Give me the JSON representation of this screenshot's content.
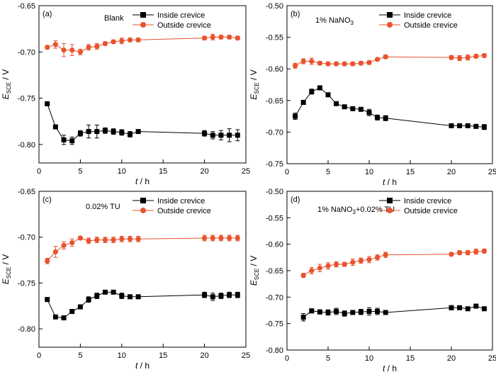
{
  "colors": {
    "inside": "#000000",
    "outside": "#e8532e",
    "axis": "#000000"
  },
  "chart_data": [
    {
      "type": "line",
      "panel_label": "(a)",
      "annotation": "Blank",
      "xlabel_italic": "t",
      "xlabel_unit": " / h",
      "ylabel_main": "E",
      "ylabel_sub": "SCE",
      "ylabel_unit": " / V",
      "xlim": [
        0,
        25
      ],
      "ylim": [
        -0.82,
        -0.65
      ],
      "xticks": [
        0,
        5,
        10,
        15,
        20,
        25
      ],
      "yticks": [
        -0.65,
        -0.7,
        -0.75,
        -0.8
      ],
      "ytick_labels": [
        "-0.65",
        "-0.70",
        "-0.75",
        "-0.80"
      ],
      "legend": {
        "placement": "top-right"
      },
      "series": [
        {
          "name": "Inside crevice",
          "marker": "square",
          "x": [
            1,
            2,
            3,
            4,
            5,
            6,
            7,
            8,
            9,
            10,
            11,
            12,
            20,
            21,
            22,
            23,
            24
          ],
          "y": [
            -0.756,
            -0.781,
            -0.795,
            -0.796,
            -0.788,
            -0.786,
            -0.786,
            -0.785,
            -0.786,
            -0.787,
            -0.789,
            -0.786,
            -0.788,
            -0.79,
            -0.79,
            -0.79,
            -0.79
          ],
          "err": [
            0,
            0,
            0.005,
            0.004,
            0.003,
            0.007,
            0.007,
            0.003,
            0.003,
            0.003,
            0.003,
            0.001,
            0.003,
            0.004,
            0.005,
            0.007,
            0.006
          ]
        },
        {
          "name": "Outside crevice",
          "marker": "circle",
          "x": [
            1,
            2,
            3,
            4,
            5,
            6,
            7,
            8,
            9,
            10,
            11,
            12,
            20,
            21,
            22,
            23,
            24
          ],
          "y": [
            -0.695,
            -0.692,
            -0.698,
            -0.698,
            -0.7,
            -0.695,
            -0.694,
            -0.691,
            -0.689,
            -0.688,
            -0.687,
            -0.687,
            -0.685,
            -0.684,
            -0.684,
            -0.684,
            -0.685
          ],
          "err": [
            0.002,
            0.004,
            0.007,
            0.006,
            0.003,
            0.003,
            0.003,
            0.002,
            0.002,
            0.003,
            0.002,
            0.002,
            0.002,
            0.003,
            0.002,
            0.002,
            0.002
          ]
        }
      ]
    },
    {
      "type": "line",
      "panel_label": "(b)",
      "annotation": "1% NaNO",
      "annotation_sub": "3",
      "xlabel_italic": "t",
      "xlabel_unit": " / h",
      "ylabel_main": "E",
      "ylabel_sub": "SCE",
      "ylabel_unit": " / V",
      "xlim": [
        0,
        25
      ],
      "ylim": [
        -0.75,
        -0.5
      ],
      "xticks": [
        0,
        5,
        10,
        15,
        20,
        25
      ],
      "yticks": [
        -0.5,
        -0.55,
        -0.6,
        -0.65,
        -0.7,
        -0.75
      ],
      "ytick_labels": [
        "-0.50",
        "-0.55",
        "-0.60",
        "-0.65",
        "-0.70",
        "-0.75"
      ],
      "legend": {
        "placement": "top-right"
      },
      "series": [
        {
          "name": "Inside crevice",
          "marker": "square",
          "x": [
            1,
            2,
            3,
            4,
            5,
            6,
            7,
            8,
            9,
            10,
            11,
            12,
            20,
            21,
            22,
            23,
            24
          ],
          "y": [
            -0.675,
            -0.653,
            -0.636,
            -0.63,
            -0.641,
            -0.655,
            -0.66,
            -0.663,
            -0.664,
            -0.669,
            -0.677,
            -0.678,
            -0.69,
            -0.69,
            -0.69,
            -0.691,
            -0.692
          ],
          "err": [
            0.005,
            0.003,
            0.004,
            0.003,
            0.003,
            0.003,
            0.003,
            0.002,
            0.003,
            0.005,
            0.004,
            0.004,
            0.003,
            0.003,
            0.003,
            0.003,
            0.004
          ]
        },
        {
          "name": "Outside crevice",
          "marker": "circle",
          "x": [
            1,
            2,
            3,
            4,
            5,
            6,
            7,
            8,
            9,
            10,
            11,
            12,
            20,
            21,
            22,
            23,
            24
          ],
          "y": [
            -0.595,
            -0.588,
            -0.588,
            -0.591,
            -0.592,
            -0.592,
            -0.592,
            -0.592,
            -0.591,
            -0.59,
            -0.585,
            -0.581,
            -0.582,
            -0.583,
            -0.582,
            -0.58,
            -0.579
          ],
          "err": [
            0.004,
            0.004,
            0.005,
            0.003,
            0.003,
            0.003,
            0.003,
            0.003,
            0.003,
            0.003,
            0.002,
            0.003,
            0.003,
            0.004,
            0.004,
            0.003,
            0.003
          ]
        }
      ]
    },
    {
      "type": "line",
      "panel_label": "(c)",
      "annotation": "0.02% TU",
      "xlabel_italic": "t",
      "xlabel_unit": " / h",
      "ylabel_main": "E",
      "ylabel_sub": "SCE",
      "ylabel_unit": " / V",
      "xlim": [
        0,
        25
      ],
      "ylim": [
        -0.82,
        -0.65
      ],
      "xticks": [
        0,
        5,
        10,
        15,
        20,
        25
      ],
      "yticks": [
        -0.65,
        -0.7,
        -0.75,
        -0.8
      ],
      "ytick_labels": [
        "-0.65",
        "-0.70",
        "-0.75",
        "-0.80"
      ],
      "legend": {
        "placement": "top-right"
      },
      "series": [
        {
          "name": "Inside crevice",
          "marker": "square",
          "x": [
            1,
            2,
            3,
            4,
            5,
            6,
            7,
            8,
            9,
            10,
            11,
            12,
            20,
            21,
            22,
            23,
            24
          ],
          "y": [
            -0.768,
            -0.787,
            -0.788,
            -0.781,
            -0.776,
            -0.768,
            -0.764,
            -0.76,
            -0.76,
            -0.764,
            -0.765,
            -0.765,
            -0.763,
            -0.765,
            -0.764,
            -0.763,
            -0.763
          ],
          "err": [
            0.002,
            0.002,
            0.002,
            0.002,
            0.002,
            0.003,
            0.003,
            0.002,
            0.002,
            0.003,
            0.002,
            0.002,
            0.003,
            0.004,
            0.003,
            0.003,
            0.003
          ]
        },
        {
          "name": "Outside crevice",
          "marker": "circle",
          "x": [
            1,
            2,
            3,
            4,
            5,
            6,
            7,
            8,
            9,
            10,
            11,
            12,
            20,
            21,
            22,
            23,
            24
          ],
          "y": [
            -0.726,
            -0.716,
            -0.709,
            -0.706,
            -0.701,
            -0.704,
            -0.703,
            -0.703,
            -0.703,
            -0.702,
            -0.702,
            -0.702,
            -0.701,
            -0.701,
            -0.701,
            -0.701,
            -0.701
          ],
          "err": [
            0.003,
            0.006,
            0.004,
            0.004,
            0.002,
            0.003,
            0.003,
            0.003,
            0.003,
            0.003,
            0.003,
            0.003,
            0.003,
            0.003,
            0.003,
            0.003,
            0.003
          ]
        }
      ]
    },
    {
      "type": "line",
      "panel_label": "(d)",
      "annotation": "1% NaNO",
      "annotation_sub": "3",
      "annotation_tail": "+0.02% TU",
      "xlabel_italic": "t",
      "xlabel_unit": " / h",
      "ylabel_main": "E",
      "ylabel_sub": "SCE",
      "ylabel_unit": " / V",
      "xlim": [
        0,
        25
      ],
      "ylim": [
        -0.8,
        -0.5
      ],
      "xticks": [
        0,
        5,
        10,
        15,
        20,
        25
      ],
      "yticks": [
        -0.5,
        -0.55,
        -0.6,
        -0.65,
        -0.7,
        -0.75,
        -0.8
      ],
      "ytick_labels": [
        "-0.50",
        "-0.55",
        "-0.60",
        "-0.65",
        "-0.70",
        "-0.75",
        "-0.80"
      ],
      "legend": {
        "placement": "top-right"
      },
      "series": [
        {
          "name": "Inside crevice",
          "marker": "square",
          "x": [
            2,
            3,
            4,
            5,
            6,
            7,
            8,
            9,
            10,
            11,
            12,
            20,
            21,
            22,
            23,
            24
          ],
          "y": [
            -0.738,
            -0.726,
            -0.728,
            -0.729,
            -0.727,
            -0.731,
            -0.729,
            -0.728,
            -0.727,
            -0.727,
            -0.729,
            -0.72,
            -0.72,
            -0.722,
            -0.717,
            -0.722
          ],
          "err": [
            0.007,
            0.004,
            0.004,
            0.005,
            0.006,
            0.005,
            0.004,
            0.005,
            0.007,
            0.006,
            0.004,
            0.004,
            0.002,
            0.002,
            0.002,
            0.003
          ]
        },
        {
          "name": "Outside crevice",
          "marker": "circle",
          "x": [
            2,
            3,
            4,
            5,
            6,
            7,
            8,
            9,
            10,
            11,
            12,
            20,
            21,
            22,
            23,
            24
          ],
          "y": [
            -0.659,
            -0.65,
            -0.645,
            -0.641,
            -0.638,
            -0.638,
            -0.634,
            -0.631,
            -0.629,
            -0.625,
            -0.62,
            -0.619,
            -0.616,
            -0.616,
            -0.614,
            -0.613
          ],
          "err": [
            0.004,
            0.006,
            0.007,
            0.006,
            0.005,
            0.004,
            0.006,
            0.005,
            0.006,
            0.005,
            0.005,
            0.003,
            0.004,
            0.004,
            0.005,
            0.004
          ]
        }
      ]
    }
  ]
}
